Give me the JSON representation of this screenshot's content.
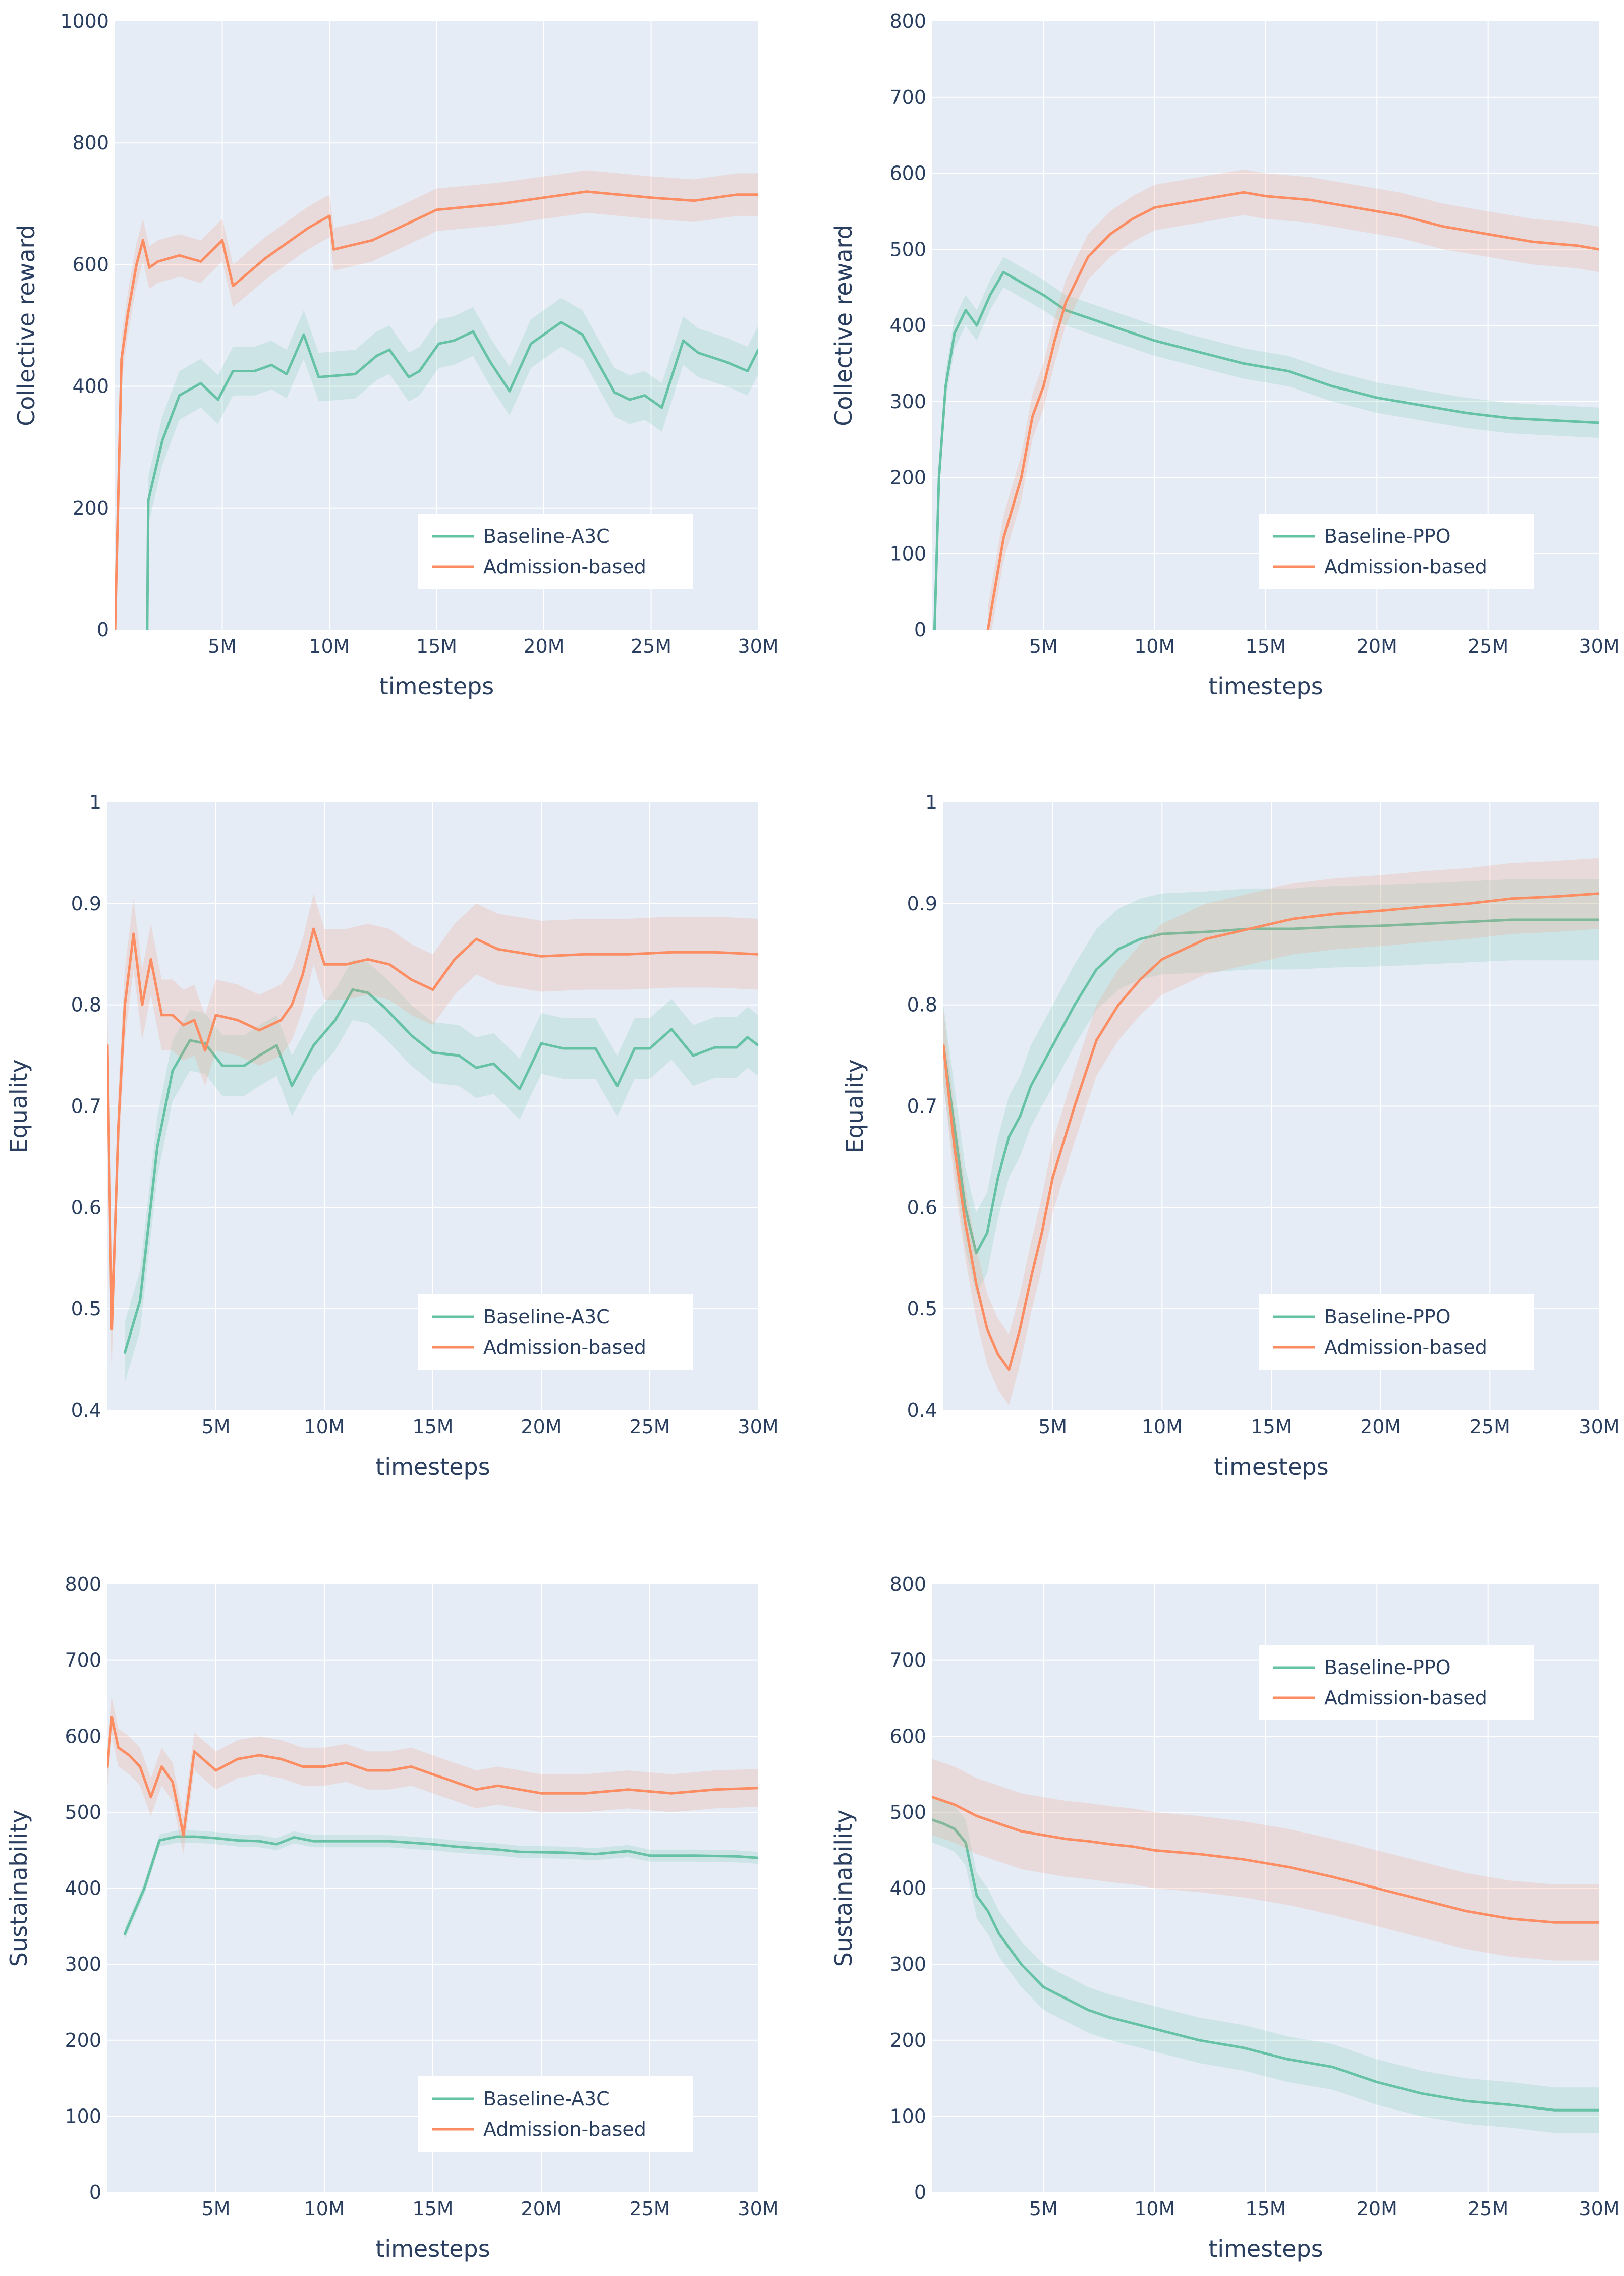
{
  "colors": {
    "baseline": "#66c2a5",
    "admission": "#fc8d62",
    "plot_bg": "#e5ecf6",
    "grid": "#ffffff",
    "text": "#2a3f5f"
  },
  "chart_data": [
    {
      "type": "line",
      "xlabel": "timesteps",
      "ylabel": "Collective reward",
      "xlim": [
        0,
        30000000
      ],
      "ylim": [
        0,
        1000
      ],
      "xticks": [
        5000000,
        10000000,
        15000000,
        20000000,
        25000000,
        30000000
      ],
      "xtick_labels": [
        "5M",
        "10M",
        "15M",
        "20M",
        "25M",
        "30M"
      ],
      "yticks": [
        0,
        200,
        400,
        600,
        800,
        1000
      ],
      "ytick_labels": [
        "0",
        "200",
        "400",
        "600",
        "800",
        "1000"
      ],
      "legend_position": "bottom-right",
      "series": [
        {
          "name": "Baseline-A3C",
          "color": "#66c2a5",
          "x": [
            1.5,
            1.55,
            2.2,
            3,
            4,
            4.8,
            5.5,
            6.5,
            7.3,
            8,
            8.8,
            9.5,
            11.2,
            12.2,
            12.8,
            13.7,
            14.2,
            15.1,
            15.8,
            16.7,
            17.5,
            18.4,
            19.4,
            20.8,
            21.8,
            23.3,
            24,
            24.7,
            25.5,
            26.5,
            27.2,
            28.5,
            29.5,
            30
          ],
          "y": [
            0,
            212,
            310,
            385,
            405,
            378,
            425,
            425,
            435,
            420,
            485,
            415,
            420,
            450,
            460,
            415,
            425,
            470,
            475,
            490,
            440,
            392,
            470,
            505,
            485,
            390,
            378,
            385,
            365,
            475,
            455,
            440,
            425,
            460
          ],
          "band": 40
        },
        {
          "name": "Admission-based",
          "color": "#fc8d62",
          "x": [
            0,
            0.3,
            0.6,
            1,
            1.3,
            1.6,
            2,
            3,
            4,
            5,
            5.5,
            7,
            9,
            10,
            10.2,
            12,
            15,
            18,
            20,
            22,
            25,
            27,
            29,
            30
          ],
          "y": [
            0,
            445,
            520,
            600,
            640,
            595,
            605,
            615,
            605,
            640,
            565,
            610,
            660,
            680,
            625,
            640,
            690,
            700,
            710,
            720,
            710,
            705,
            715,
            715
          ],
          "band": 35
        }
      ]
    },
    {
      "type": "line",
      "xlabel": "timesteps",
      "ylabel": "Collective reward",
      "xlim": [
        0,
        30000000
      ],
      "ylim": [
        0,
        800
      ],
      "xticks": [
        5000000,
        10000000,
        15000000,
        20000000,
        25000000,
        30000000
      ],
      "xtick_labels": [
        "5M",
        "10M",
        "15M",
        "20M",
        "25M",
        "30M"
      ],
      "yticks": [
        0,
        100,
        200,
        300,
        400,
        500,
        600,
        700,
        800
      ],
      "ytick_labels": [
        "0",
        "100",
        "200",
        "300",
        "400",
        "500",
        "600",
        "700",
        "800"
      ],
      "legend_position": "bottom-right",
      "series": [
        {
          "name": "Baseline-PPO",
          "color": "#66c2a5",
          "x": [
            0.1,
            0.3,
            0.6,
            1,
            1.5,
            2,
            2.6,
            3.2,
            3.8,
            5,
            6,
            7,
            8,
            9,
            10,
            12,
            14,
            16,
            18,
            20,
            22,
            24,
            26,
            28,
            30
          ],
          "y": [
            0,
            200,
            320,
            390,
            420,
            400,
            440,
            470,
            460,
            440,
            420,
            410,
            400,
            390,
            380,
            365,
            350,
            340,
            320,
            305,
            295,
            285,
            278,
            275,
            272
          ],
          "band": 20
        },
        {
          "name": "Admission-based",
          "color": "#fc8d62",
          "x": [
            2.5,
            3.2,
            4,
            4.5,
            5,
            5.5,
            6,
            7,
            8,
            9,
            10,
            11,
            12,
            13,
            14,
            15,
            17,
            19,
            21,
            23,
            25,
            27,
            29,
            30
          ],
          "y": [
            0,
            120,
            200,
            280,
            320,
            380,
            430,
            490,
            520,
            540,
            555,
            560,
            565,
            570,
            575,
            570,
            565,
            555,
            545,
            530,
            520,
            510,
            505,
            500
          ],
          "band": 30
        }
      ]
    },
    {
      "type": "line",
      "xlabel": "timesteps",
      "ylabel": "Equality",
      "xlim": [
        0,
        30000000
      ],
      "ylim": [
        0.4,
        1
      ],
      "xticks": [
        5000000,
        10000000,
        15000000,
        20000000,
        25000000,
        30000000
      ],
      "xtick_labels": [
        "5M",
        "10M",
        "15M",
        "20M",
        "25M",
        "30M"
      ],
      "yticks": [
        0.4,
        0.5,
        0.6,
        0.7,
        0.8,
        0.9,
        1
      ],
      "ytick_labels": [
        "0.4",
        "0.5",
        "0.6",
        "0.7",
        "0.8",
        "0.9",
        "1"
      ],
      "legend_position": "bottom-right",
      "series": [
        {
          "name": "Baseline-A3C",
          "color": "#66c2a5",
          "x": [
            0.8,
            1.5,
            2.3,
            3,
            3.8,
            4.5,
            5.3,
            6.3,
            7,
            7.8,
            8.5,
            9.5,
            10.5,
            11.3,
            12,
            12.8,
            14,
            15,
            16.2,
            17,
            17.8,
            19,
            20,
            21,
            22.5,
            23.5,
            24.3,
            25,
            26,
            27,
            28,
            29,
            29.5,
            30
          ],
          "y": [
            0.457,
            0.508,
            0.66,
            0.735,
            0.765,
            0.762,
            0.74,
            0.74,
            0.75,
            0.76,
            0.72,
            0.76,
            0.785,
            0.815,
            0.812,
            0.797,
            0.77,
            0.753,
            0.75,
            0.738,
            0.742,
            0.717,
            0.762,
            0.757,
            0.757,
            0.72,
            0.757,
            0.757,
            0.776,
            0.75,
            0.758,
            0.758,
            0.768,
            0.76
          ],
          "band": 0.03
        },
        {
          "name": "Admission-based",
          "color": "#fc8d62",
          "x": [
            0,
            0.2,
            0.5,
            0.8,
            1.2,
            1.6,
            2,
            2.5,
            3,
            3.5,
            4,
            4.5,
            5,
            6,
            7,
            8,
            8.5,
            9,
            9.5,
            10,
            11,
            12,
            13,
            14,
            15,
            16,
            17,
            18,
            20,
            22,
            24,
            26,
            28,
            30
          ],
          "y": [
            0.76,
            0.48,
            0.68,
            0.8,
            0.87,
            0.8,
            0.845,
            0.79,
            0.79,
            0.78,
            0.785,
            0.755,
            0.79,
            0.785,
            0.775,
            0.785,
            0.8,
            0.83,
            0.875,
            0.84,
            0.84,
            0.845,
            0.84,
            0.825,
            0.815,
            0.845,
            0.865,
            0.855,
            0.848,
            0.85,
            0.85,
            0.852,
            0.852,
            0.85
          ],
          "band": 0.035
        }
      ]
    },
    {
      "type": "line",
      "xlabel": "timesteps",
      "ylabel": "Equality",
      "xlim": [
        0,
        30000000
      ],
      "ylim": [
        0.4,
        1
      ],
      "xticks": [
        5000000,
        10000000,
        15000000,
        20000000,
        25000000,
        30000000
      ],
      "xtick_labels": [
        "5M",
        "10M",
        "15M",
        "20M",
        "25M",
        "30M"
      ],
      "yticks": [
        0.4,
        0.5,
        0.6,
        0.7,
        0.8,
        0.9,
        1
      ],
      "ytick_labels": [
        "0.4",
        "0.5",
        "0.6",
        "0.7",
        "0.8",
        "0.9",
        "1"
      ],
      "legend_position": "bottom-right",
      "series": [
        {
          "name": "Baseline-PPO",
          "color": "#66c2a5",
          "x": [
            0,
            0.5,
            1,
            1.5,
            2,
            2.5,
            3,
            3.5,
            4,
            5,
            6,
            7,
            8,
            9,
            10,
            12,
            14,
            16,
            18,
            20,
            22,
            24,
            26,
            28,
            30
          ],
          "y": [
            0.76,
            0.68,
            0.6,
            0.555,
            0.575,
            0.63,
            0.67,
            0.69,
            0.72,
            0.76,
            0.8,
            0.835,
            0.855,
            0.865,
            0.87,
            0.872,
            0.875,
            0.875,
            0.877,
            0.878,
            0.88,
            0.882,
            0.884,
            0.884,
            0.884
          ],
          "band": 0.04
        },
        {
          "name": "Admission-based",
          "color": "#fc8d62",
          "x": [
            0,
            0.5,
            1,
            1.5,
            2,
            2.5,
            3,
            3.5,
            4,
            4.5,
            5,
            6,
            7,
            8,
            9,
            10,
            12,
            14,
            16,
            18,
            20,
            22,
            24,
            26,
            28,
            30
          ],
          "y": [
            0.76,
            0.66,
            0.585,
            0.525,
            0.48,
            0.455,
            0.44,
            0.48,
            0.53,
            0.575,
            0.63,
            0.7,
            0.765,
            0.8,
            0.825,
            0.845,
            0.865,
            0.875,
            0.885,
            0.89,
            0.893,
            0.897,
            0.9,
            0.905,
            0.907,
            0.91
          ],
          "band": 0.035
        }
      ]
    },
    {
      "type": "line",
      "xlabel": "timesteps",
      "ylabel": "Sustainability",
      "xlim": [
        0,
        30000000
      ],
      "ylim": [
        0,
        800
      ],
      "xticks": [
        5000000,
        10000000,
        15000000,
        20000000,
        25000000,
        30000000
      ],
      "xtick_labels": [
        "5M",
        "10M",
        "15M",
        "20M",
        "25M",
        "30M"
      ],
      "yticks": [
        0,
        100,
        200,
        300,
        400,
        500,
        600,
        700,
        800
      ],
      "ytick_labels": [
        "0",
        "100",
        "200",
        "300",
        "400",
        "500",
        "600",
        "700",
        "800"
      ],
      "legend_position": "bottom-right",
      "series": [
        {
          "name": "Baseline-A3C",
          "color": "#66c2a5",
          "x": [
            0.8,
            1.7,
            2.4,
            3.2,
            4,
            5,
            6,
            7,
            7.8,
            8.6,
            9.5,
            11,
            13,
            15,
            16,
            18,
            19,
            21,
            22.5,
            24,
            25,
            27,
            29,
            30
          ],
          "y": [
            340,
            400,
            463,
            468,
            468,
            466,
            463,
            462,
            458,
            467,
            462,
            462,
            462,
            458,
            455,
            451,
            448,
            447,
            445,
            449,
            443,
            443,
            442,
            440
          ],
          "band": 8
        },
        {
          "name": "Admission-based",
          "color": "#fc8d62",
          "x": [
            0,
            0.2,
            0.5,
            1,
            1.5,
            2,
            2.5,
            3,
            3.5,
            4,
            5,
            6,
            7,
            8,
            9,
            10,
            11,
            12,
            13,
            14,
            15,
            16,
            17,
            18,
            19,
            20,
            22,
            24,
            26,
            28,
            30
          ],
          "y": [
            560,
            625,
            585,
            575,
            560,
            520,
            560,
            540,
            470,
            580,
            555,
            570,
            575,
            570,
            560,
            560,
            565,
            555,
            555,
            560,
            550,
            540,
            530,
            535,
            530,
            525,
            525,
            530,
            525,
            530,
            532
          ],
          "band": 25
        }
      ]
    },
    {
      "type": "line",
      "xlabel": "timesteps",
      "ylabel": "Sustainability",
      "xlim": [
        0,
        30000000
      ],
      "ylim": [
        0,
        800
      ],
      "xticks": [
        5000000,
        10000000,
        15000000,
        20000000,
        25000000,
        30000000
      ],
      "xtick_labels": [
        "5M",
        "10M",
        "15M",
        "20M",
        "25M",
        "30M"
      ],
      "yticks": [
        0,
        100,
        200,
        300,
        400,
        500,
        600,
        700,
        800
      ],
      "ytick_labels": [
        "0",
        "100",
        "200",
        "300",
        "400",
        "500",
        "600",
        "700",
        "800"
      ],
      "legend_position": "top-right",
      "series": [
        {
          "name": "Baseline-PPO",
          "color": "#66c2a5",
          "x": [
            0,
            0.5,
            1,
            1.5,
            2,
            2.5,
            3,
            4,
            5,
            6,
            7,
            8,
            10,
            12,
            14,
            16,
            18,
            20,
            22,
            24,
            26,
            28,
            30
          ],
          "y": [
            490,
            485,
            478,
            460,
            390,
            370,
            340,
            300,
            270,
            255,
            240,
            230,
            215,
            200,
            190,
            175,
            165,
            145,
            130,
            120,
            115,
            108,
            108
          ],
          "band": 30
        },
        {
          "name": "Admission-based",
          "color": "#fc8d62",
          "x": [
            0,
            1,
            2,
            3,
            4,
            5,
            6,
            7,
            8,
            9,
            10,
            12,
            14,
            16,
            18,
            20,
            22,
            24,
            26,
            28,
            30
          ],
          "y": [
            520,
            510,
            495,
            485,
            475,
            470,
            465,
            462,
            458,
            455,
            450,
            445,
            438,
            428,
            415,
            400,
            385,
            370,
            360,
            355,
            355
          ],
          "band": 50
        }
      ]
    }
  ]
}
